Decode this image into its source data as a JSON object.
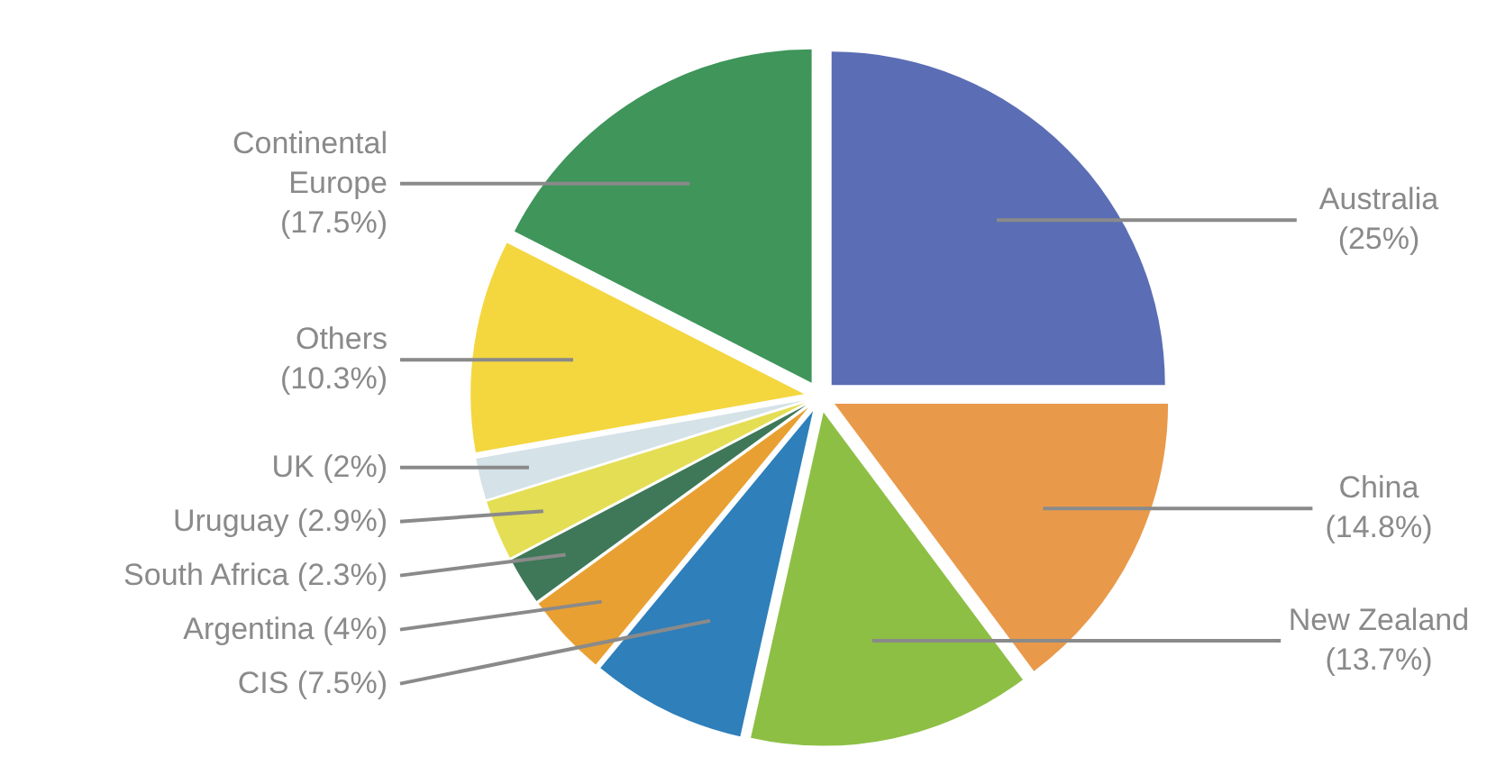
{
  "chart_data": {
    "type": "pie",
    "categories": [
      "Australia",
      "China",
      "New Zealand",
      "CIS",
      "Argentina",
      "South Africa",
      "Uruguay",
      "UK",
      "Others",
      "Continental Europe"
    ],
    "values": [
      25,
      14.8,
      13.7,
      7.5,
      4,
      2.3,
      2.9,
      2,
      10.3,
      17.5
    ],
    "value_labels": [
      "(25%)",
      "(14.8%)",
      "(13.7%)",
      "(7.5%)",
      "(4%)",
      "(2.3%)",
      "(2.9%)",
      "(2%)",
      "(10.3%)",
      "(17.5%)"
    ],
    "colors": [
      "#5b6db4",
      "#e9994a",
      "#8dbf45",
      "#2e7fba",
      "#e9a032",
      "#3e7858",
      "#e4de55",
      "#d5e2e8",
      "#f4d63f",
      "#3f955a"
    ]
  }
}
